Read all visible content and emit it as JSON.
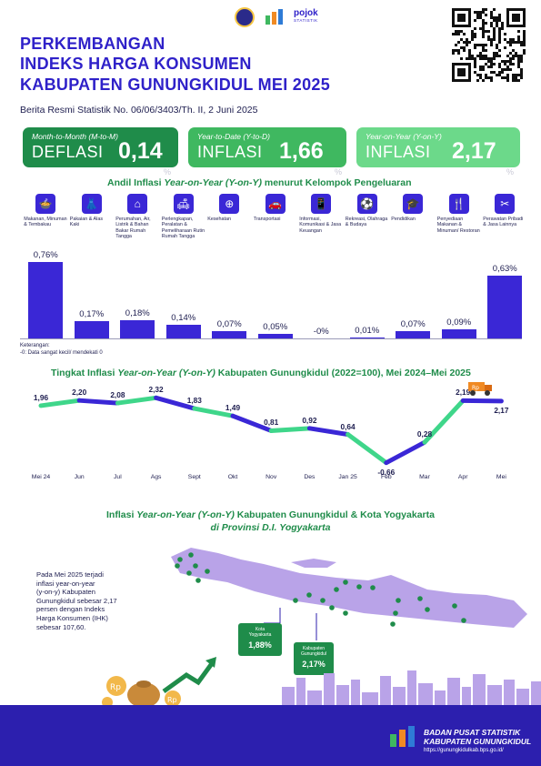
{
  "header": {
    "logo_text": "pojok",
    "logo_sub": "STATISTIK",
    "title_line1": "PERKEMBANGAN",
    "title_line2": "INDEKS HARGA KONSUMEN",
    "title_line3": "KABUPATEN GUNUNGKIDUL MEI 2025",
    "subtitle": "Berita Resmi Statistik No. 06/06/3403/Th. II, 2 Juni 2025"
  },
  "stats": [
    {
      "label": "Month-to-Month (M-to-M)",
      "kind": "DEFLASI",
      "value": "0,14",
      "pct": "%",
      "color": "#1f8c4a"
    },
    {
      "label": "Year-to-Date (Y-to-D)",
      "kind": "INFLASI",
      "value": "1,66",
      "pct": "%",
      "color": "#3fb860"
    },
    {
      "label": "Year-on-Year (Y-on-Y)",
      "kind": "INFLASI",
      "value": "2,17",
      "pct": "%",
      "color": "#6cd98a"
    }
  ],
  "bar_section": {
    "title_a": "Andil Inflasi ",
    "title_b": "Year-on-Year (Y-on-Y)",
    "title_c": " menurut Kelompok Pengeluaran",
    "note_title": "Keterangan:",
    "note_body": "-0: Data sangat kecil/ mendekati 0"
  },
  "chart_data": [
    {
      "type": "bar",
      "categories": [
        "Makanan, Minuman & Tembakau",
        "Pakaian & Alas Kaki",
        "Perumahan, Air, Listrik & Bahan Bakar Rumah Tangga",
        "Perlengkapan, Peralatan & Pemeliharaan Rutin Rumah Tangga",
        "Kesehatan",
        "Transportasi",
        "Informasi, Komunikasi & Jasa Keuangan",
        "Rekreasi, Olahraga & Budaya",
        "Pendidikan",
        "Penyediaan Makanan & Minuman/ Restoran",
        "Perawatan Pribadi & Jasa Lainnya"
      ],
      "icons": [
        "food-icon",
        "clothing-icon",
        "house-icon",
        "furniture-icon",
        "health-icon",
        "car-icon",
        "phone-icon",
        "sport-icon",
        "graduation-icon",
        "restaurant-icon",
        "tools-icon"
      ],
      "icon_glyphs": [
        "🍲",
        "👗",
        "⌂",
        "🛋",
        "⊕",
        "🚗",
        "📱",
        "⚽",
        "🎓",
        "🍴",
        "✂"
      ],
      "values": [
        0.76,
        0.17,
        0.18,
        0.14,
        0.07,
        0.05,
        0.0,
        0.01,
        0.07,
        0.09,
        0.63
      ],
      "labels": [
        "0,76%",
        "0,17%",
        "0,18%",
        "0,14%",
        "0,07%",
        "0,05%",
        "-0%",
        "0,01%",
        "0,07%",
        "0,09%",
        "0,63%"
      ],
      "ylim": [
        0,
        0.8
      ]
    },
    {
      "type": "line",
      "title_a": "Tingkat Inflasi ",
      "title_b": "Year-on-Year (Y-on-Y)",
      "title_c": " Kabupaten Gunungkidul (2022=100), Mei 2024–Mei 2025",
      "x": [
        "Mei 24",
        "Jun",
        "Jul",
        "Ags",
        "Sept",
        "Okt",
        "Nov",
        "Des",
        "Jan 25",
        "Feb",
        "Mar",
        "Apr",
        "Mei"
      ],
      "values": [
        1.96,
        2.2,
        2.08,
        2.32,
        1.83,
        1.49,
        0.81,
        0.92,
        0.64,
        -0.66,
        0.28,
        2.19,
        2.17
      ],
      "labels": [
        "1,96",
        "2,20",
        "2,08",
        "2,32",
        "1,83",
        "1,49",
        "0,81",
        "0,92",
        "0,64",
        "-0,66",
        "0,28",
        "2,19",
        "2,17"
      ],
      "ylim": [
        -0.8,
        2.5
      ],
      "colors": [
        "#3fd68a",
        "#3a27d6"
      ]
    }
  ],
  "map_section": {
    "title_a": "Inflasi ",
    "title_b": "Year-on-Year (Y-on-Y)",
    "title_c": " Kabupaten Gunungkidul & Kota Yogyakarta",
    "title_line2": "di Provinsi D.I. Yogyakarta",
    "paragraph": [
      "Pada Mei 2025 terjadi",
      "inflasi year-on-year",
      "(y-on-y) Kabupaten",
      "Gunungkidul sebesar 2,17",
      "persen dengan Indeks",
      "Harga Konsumen (IHK)",
      "sebesar 107,60."
    ],
    "city1_name": [
      "Kota",
      "Yogyakarta"
    ],
    "city1_val": "1,88%",
    "city2_name": [
      "Kabupaten",
      "Gunungkidul"
    ],
    "city2_val": "2,17%"
  },
  "footer": {
    "org1": "BADAN PUSAT STATISTIK",
    "org2": "KABUPATEN GUNUNGKIDUL",
    "url": "https://gunungkidulkab.bps.go.id/"
  },
  "colors": {
    "primary": "#3a27d6",
    "green": "#1f8c4a",
    "light_green": "#3fd68a",
    "navy": "#2c1fae",
    "lavender": "#b9a3e8"
  }
}
